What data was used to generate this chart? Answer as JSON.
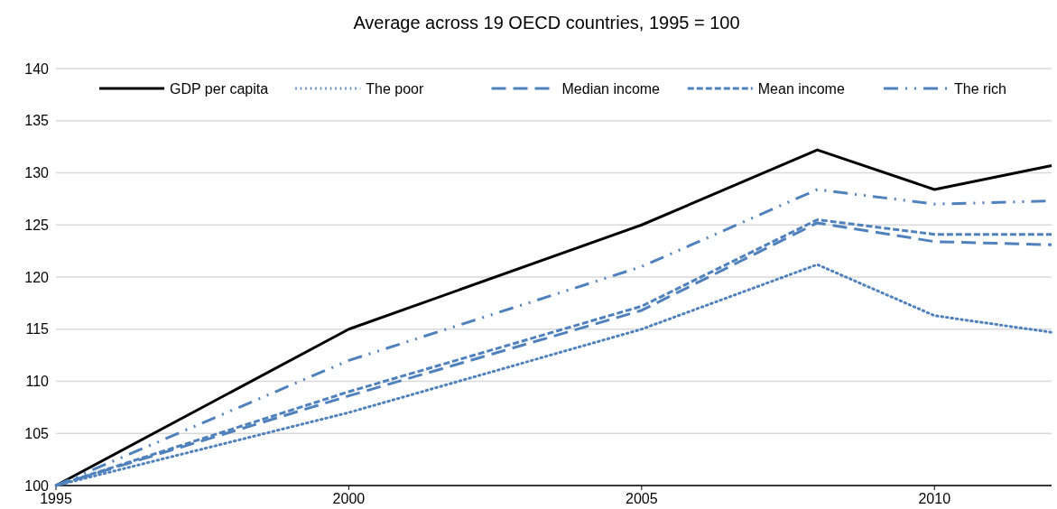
{
  "chart_data": {
    "type": "line",
    "title": "Average across 19 OECD countries, 1995 = 100",
    "x": [
      1995,
      2000,
      2005,
      2008,
      2010,
      2012
    ],
    "xlim": [
      1995,
      2012
    ],
    "xticks": [
      1995,
      2000,
      2005,
      2010
    ],
    "ylim": [
      100,
      140
    ],
    "yticks": [
      100,
      105,
      110,
      115,
      120,
      125,
      130,
      135,
      140
    ],
    "grid": "y",
    "legend": "top",
    "series": [
      {
        "name": "GDP per capita",
        "color": "#000000",
        "line_style": "solid",
        "values": [
          100,
          115,
          125,
          132.2,
          128.4,
          130.7
        ]
      },
      {
        "name": "The poor",
        "color": "#4f81bd",
        "line_style": "dotted",
        "values": [
          100,
          107,
          115,
          121.2,
          116.3,
          114.7
        ]
      },
      {
        "name": "Median income",
        "color": "#4f81bd",
        "line_style": "longdash",
        "values": [
          100,
          108.6,
          116.8,
          125.2,
          123.4,
          123.1
        ]
      },
      {
        "name": "Mean income",
        "color": "#4f81bd",
        "line_style": "dashed",
        "values": [
          100,
          109,
          117.2,
          125.5,
          124.1,
          124.1
        ]
      },
      {
        "name": "The rich",
        "color": "#4f81bd",
        "line_style": "dashdot",
        "values": [
          100,
          112,
          121,
          128.4,
          127,
          127.3
        ]
      }
    ]
  }
}
